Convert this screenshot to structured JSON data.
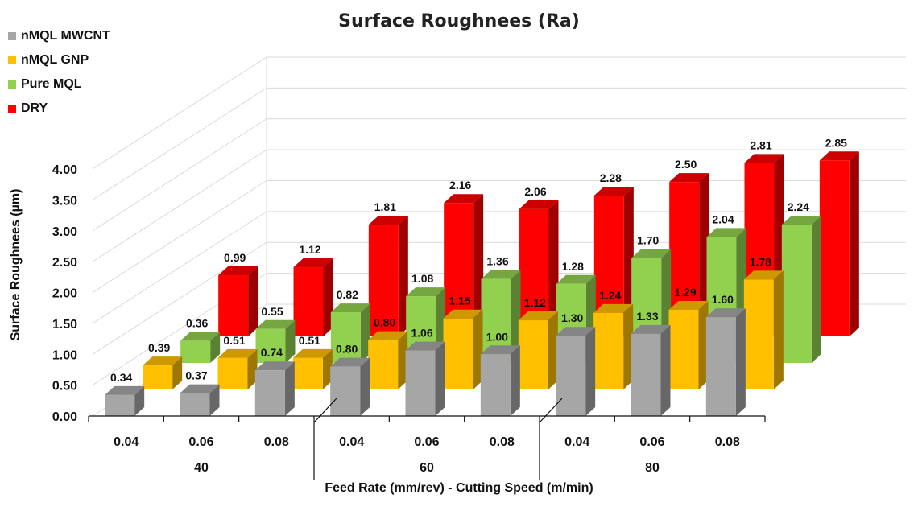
{
  "chart_data": {
    "type": "bar",
    "title": "Surface Roughnees (Ra)",
    "xlabel": "Feed Rate (mm/rev) - Cutting Speed (m/min)",
    "ylabel": "Surface Roughnees (µm)",
    "ylim": [
      0,
      4
    ],
    "yticks": [
      "0.00",
      "0.50",
      "1.00",
      "1.50",
      "2.00",
      "2.50",
      "3.00",
      "3.50",
      "4.00"
    ],
    "categories": [
      "0.04",
      "0.06",
      "0.08",
      "0.04",
      "0.06",
      "0.08",
      "0.04",
      "0.06",
      "0.08"
    ],
    "groups": [
      {
        "label": "40"
      },
      {
        "label": "60"
      },
      {
        "label": "80"
      }
    ],
    "series": [
      {
        "name": "nMQL MWCNT",
        "color": "#a6a6a6",
        "values": [
          0.34,
          0.37,
          0.74,
          0.8,
          1.06,
          1.0,
          1.3,
          1.33,
          1.6
        ]
      },
      {
        "name": "nMQL GNP",
        "color": "#ffc000",
        "values": [
          0.39,
          0.51,
          0.51,
          0.8,
          1.15,
          1.12,
          1.24,
          1.29,
          1.78
        ]
      },
      {
        "name": "Pure MQL",
        "color": "#92d050",
        "values": [
          0.36,
          0.55,
          0.82,
          1.08,
          1.36,
          1.28,
          1.7,
          2.04,
          2.24
        ]
      },
      {
        "name": "DRY",
        "color": "#ff0000",
        "values": [
          0.99,
          1.12,
          1.81,
          2.16,
          2.06,
          2.28,
          2.5,
          2.81,
          2.85
        ]
      }
    ]
  }
}
